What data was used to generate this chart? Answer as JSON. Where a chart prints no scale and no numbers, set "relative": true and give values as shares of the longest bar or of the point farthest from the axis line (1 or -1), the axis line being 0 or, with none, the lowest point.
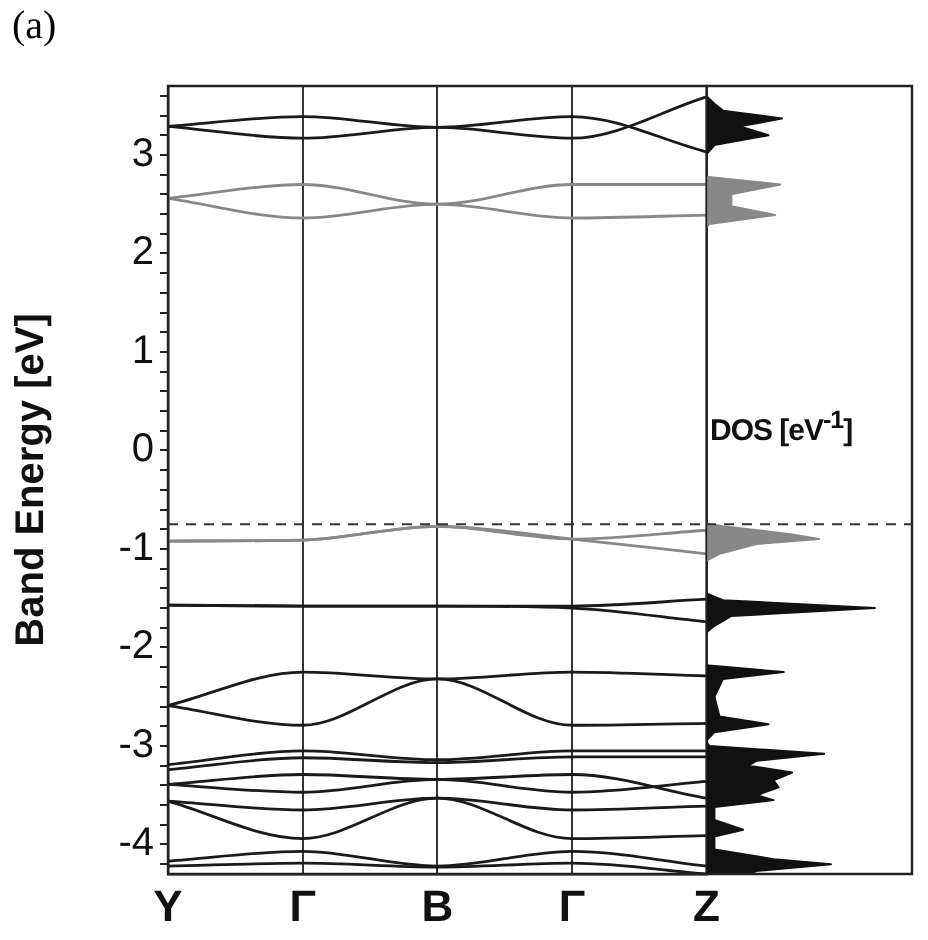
{
  "chart_data": [
    {
      "type": "line",
      "title": "(a)",
      "ylabel": "Band Energy [eV]",
      "categories": [
        "Y",
        "Γ",
        "B",
        "Γ",
        "Z"
      ],
      "ylim": [
        -4.3,
        3.7
      ],
      "yticks": [
        {
          "value": -4.2,
          "label": null
        },
        -4,
        {
          "value": -3.8,
          "label": null
        },
        {
          "value": -3.6,
          "label": null
        },
        {
          "value": -3.4,
          "label": null
        },
        {
          "value": -3.2,
          "label": null
        },
        -3,
        {
          "value": -2.8,
          "label": null
        },
        {
          "value": -2.6,
          "label": null
        },
        {
          "value": -2.4,
          "label": null
        },
        {
          "value": -2.2,
          "label": null
        },
        -2,
        {
          "value": -1.8,
          "label": null
        },
        {
          "value": -1.6,
          "label": null
        },
        {
          "value": -1.4,
          "label": null
        },
        {
          "value": -1.2,
          "label": null
        },
        -1,
        {
          "value": -0.8,
          "label": null
        },
        {
          "value": -0.6,
          "label": null
        },
        {
          "value": -0.4,
          "label": null
        },
        {
          "value": -0.2,
          "label": null
        },
        0,
        {
          "value": 0.2,
          "label": null
        },
        {
          "value": 0.4,
          "label": null
        },
        {
          "value": 0.6,
          "label": null
        },
        {
          "value": 0.8,
          "label": null
        },
        1,
        {
          "value": 1.2,
          "label": null
        },
        {
          "value": 1.4,
          "label": null
        },
        {
          "value": 1.6,
          "label": null
        },
        {
          "value": 1.8,
          "label": null
        },
        2,
        {
          "value": 2.2,
          "label": null
        },
        {
          "value": 2.4,
          "label": null
        },
        {
          "value": 2.6,
          "label": null
        },
        {
          "value": 2.8,
          "label": null
        },
        3,
        {
          "value": 3.2,
          "label": null
        },
        {
          "value": 3.4,
          "label": null
        },
        {
          "value": 3.6,
          "label": null
        }
      ],
      "grid": "x",
      "marker": "none",
      "line_style": "solid",
      "ref_lines": [
        {
          "axis": "y",
          "value": -0.75,
          "line_style": "dashed",
          "color": "#333333"
        }
      ],
      "series": [
        {
          "color": "#1a1a1a",
          "values": [
            3.29,
            3.39,
            3.28,
            3.39,
            3.03
          ]
        },
        {
          "color": "#1a1a1a",
          "values": [
            3.29,
            3.17,
            3.28,
            3.17,
            3.59
          ]
        },
        {
          "color": "#888888",
          "values": [
            2.56,
            2.7,
            2.5,
            2.7,
            2.7
          ]
        },
        {
          "color": "#888888",
          "values": [
            2.56,
            2.36,
            2.5,
            2.36,
            2.39
          ]
        },
        {
          "color": "#888888",
          "values": [
            -0.92,
            -0.91,
            -0.77,
            -0.9,
            -0.81
          ]
        },
        {
          "color": "#888888",
          "values": [
            -0.92,
            -0.91,
            -0.77,
            -0.9,
            -1.05
          ]
        },
        {
          "color": "#1a1a1a",
          "values": [
            -1.57,
            -1.58,
            -1.58,
            -1.58,
            -1.51
          ]
        },
        {
          "color": "#1a1a1a",
          "values": [
            -1.57,
            -1.58,
            -1.58,
            -1.6,
            -1.74
          ]
        },
        {
          "color": "#1a1a1a",
          "values": [
            -2.59,
            -2.25,
            -2.32,
            -2.25,
            -2.29
          ]
        },
        {
          "color": "#1a1a1a",
          "values": [
            -2.59,
            -2.79,
            -2.32,
            -2.79,
            -2.77
          ]
        },
        {
          "color": "#1a1a1a",
          "values": [
            -3.19,
            -3.05,
            -3.14,
            -3.05,
            -3.05
          ]
        },
        {
          "color": "#1a1a1a",
          "values": [
            -3.24,
            -3.12,
            -3.17,
            -3.11,
            -3.11
          ]
        },
        {
          "color": "#1a1a1a",
          "values": [
            -3.39,
            -3.29,
            -3.34,
            -3.29,
            -3.53
          ]
        },
        {
          "color": "#1a1a1a",
          "values": [
            -3.39,
            -3.47,
            -3.34,
            -3.47,
            -3.36
          ]
        },
        {
          "color": "#1a1a1a",
          "values": [
            -3.56,
            -3.65,
            -3.53,
            -3.65,
            -3.61
          ]
        },
        {
          "color": "#1a1a1a",
          "values": [
            -3.56,
            -3.94,
            -3.53,
            -3.94,
            -3.91
          ]
        },
        {
          "color": "#1a1a1a",
          "values": [
            -4.17,
            -4.07,
            -4.22,
            -4.07,
            -4.22
          ]
        },
        {
          "color": "#1a1a1a",
          "values": [
            -4.22,
            -4.19,
            -4.23,
            -4.19,
            -4.3
          ]
        }
      ]
    },
    {
      "type": "area",
      "xlabel": "DOS [eV$^{-1}$]",
      "orientation": "horizontal",
      "relative": true,
      "ylim": [
        -4.3,
        3.7
      ],
      "tick_labels": false,
      "ref_lines": [
        {
          "axis": "y",
          "value": -0.75,
          "line_style": "dashed",
          "color": "#333333"
        }
      ],
      "series": [
        {
          "color": "#111111",
          "x": [
            3.6,
            3.52,
            3.45,
            3.37,
            3.29,
            3.2,
            3.1,
            3.0,
            null,
            -1.45,
            -1.52,
            -1.6,
            -1.68,
            -1.78,
            -1.85,
            null,
            -2.18,
            -2.25,
            -2.32,
            -2.5,
            -2.7,
            -2.78,
            -2.86,
            -2.95,
            -3.0,
            -3.08,
            -3.15,
            -3.2,
            -3.27,
            -3.35,
            -3.42,
            -3.5,
            -3.55,
            -3.62,
            -3.75,
            -3.85,
            -3.92,
            -4.05,
            -4.15,
            -4.2,
            -4.27,
            -4.3
          ],
          "values": [
            0,
            0.05,
            0.1,
            0.45,
            0.2,
            0.37,
            0.05,
            0,
            null,
            0,
            0.1,
            1,
            0.15,
            0.05,
            0,
            null,
            0,
            0.46,
            0.1,
            0.05,
            0.08,
            0.37,
            0.05,
            0,
            0.02,
            0.7,
            0.3,
            0.25,
            0.51,
            0.4,
            0.43,
            0.3,
            0.4,
            0.05,
            0.05,
            0.22,
            0.05,
            0.05,
            0.4,
            0.74,
            0.3,
            0.25
          ]
        },
        {
          "color": "#888888",
          "x": [
            2.78,
            2.7,
            2.6,
            2.48,
            2.39,
            2.3,
            2.26,
            null,
            -0.74,
            -0.77,
            -0.85,
            -0.9,
            -0.95,
            -1.05,
            -1.12
          ],
          "values": [
            0,
            0.44,
            0.15,
            0.15,
            0.41,
            0.02,
            0,
            null,
            0,
            0.1,
            0.5,
            0.67,
            0.3,
            0.08,
            0
          ]
        }
      ]
    }
  ]
}
